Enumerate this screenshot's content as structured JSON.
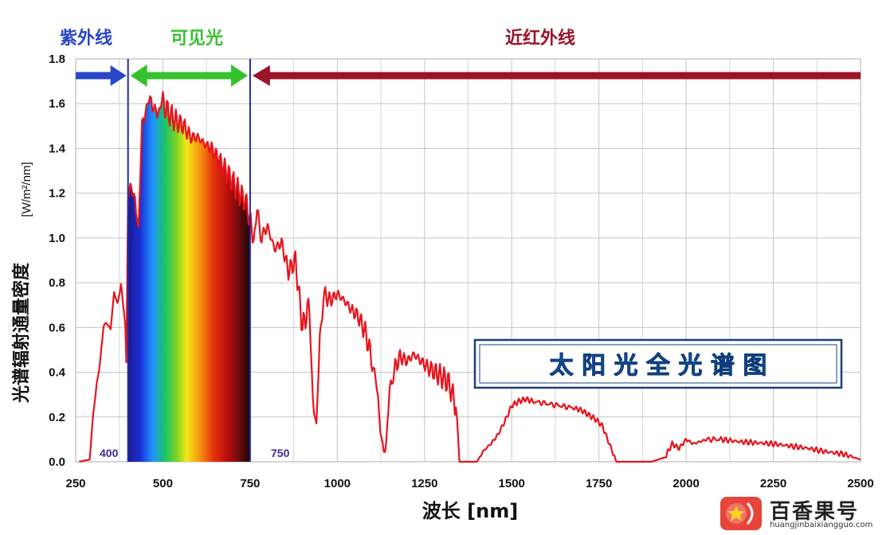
{
  "chart_data": {
    "type": "area",
    "title": "太 阳 光 全 光 谱 图",
    "xlabel": "波长 [nm]",
    "ylabel": "光谱辐射通量密度",
    "ylabel_unit": "[W/m²/nm]",
    "xlim": [
      250,
      2500
    ],
    "ylim": [
      0,
      1.8
    ],
    "xticks": [
      250,
      500,
      750,
      1000,
      1250,
      1500,
      1750,
      2000,
      2250,
      2500
    ],
    "yticks": [
      "0.0",
      "0.2",
      "0.4",
      "0.6",
      "0.8",
      "1.0",
      "1.2",
      "1.4",
      "1.6",
      "1.8"
    ],
    "grid": true,
    "bands": [
      {
        "label": "紫外线",
        "color": "#2846c8"
      },
      {
        "label": "可见光",
        "color": "#35c22e"
      },
      {
        "label": "近红外线",
        "color": "#9c1428"
      }
    ],
    "boundaries": [
      {
        "x": 400,
        "label": "400"
      },
      {
        "x": 750,
        "label": "750"
      }
    ],
    "series": [
      {
        "color": "#e8141c",
        "x": [
          260,
          290,
          300,
          310,
          320,
          330,
          340,
          350,
          360,
          370,
          380,
          390,
          395,
          400,
          410,
          420,
          430,
          440,
          450,
          460,
          470,
          480,
          490,
          500,
          520,
          540,
          560,
          580,
          600,
          620,
          640,
          660,
          680,
          700,
          720,
          740,
          760,
          770,
          780,
          800,
          820,
          840,
          860,
          880,
          900,
          920,
          930,
          940,
          950,
          960,
          980,
          1000,
          1020,
          1040,
          1060,
          1080,
          1100,
          1110,
          1120,
          1130,
          1140,
          1150,
          1160,
          1180,
          1200,
          1220,
          1240,
          1260,
          1280,
          1300,
          1320,
          1340,
          1350,
          1360,
          1380,
          1400,
          1420,
          1440,
          1460,
          1480,
          1500,
          1520,
          1540,
          1560,
          1600,
          1640,
          1680,
          1700,
          1720,
          1740,
          1760,
          1780,
          1800,
          1820,
          1850,
          1900,
          1940,
          1960,
          1980,
          2000,
          2020,
          2040,
          2060,
          2100,
          2150,
          2200,
          2250,
          2300,
          2350,
          2400,
          2450,
          2500
        ],
        "values": [
          0,
          0.01,
          0.2,
          0.35,
          0.45,
          0.6,
          0.62,
          0.6,
          0.75,
          0.7,
          0.8,
          0.65,
          0.45,
          1.15,
          1.25,
          1.2,
          1.0,
          1.5,
          1.6,
          1.62,
          1.55,
          1.6,
          1.58,
          1.6,
          1.55,
          1.52,
          1.5,
          1.45,
          1.45,
          1.42,
          1.4,
          1.35,
          1.3,
          1.25,
          1.2,
          1.15,
          1.0,
          1.1,
          1.0,
          1.05,
          0.95,
          0.98,
          0.85,
          0.9,
          0.6,
          0.7,
          0.3,
          0.12,
          0.55,
          0.75,
          0.72,
          0.75,
          0.72,
          0.68,
          0.65,
          0.58,
          0.45,
          0.35,
          0.2,
          0.1,
          0.05,
          0.3,
          0.4,
          0.47,
          0.45,
          0.48,
          0.45,
          0.42,
          0.4,
          0.38,
          0.35,
          0.25,
          0.0,
          0.0,
          0.0,
          0.0,
          0.05,
          0.08,
          0.12,
          0.18,
          0.25,
          0.27,
          0.28,
          0.27,
          0.26,
          0.25,
          0.24,
          0.23,
          0.21,
          0.19,
          0.16,
          0.08,
          0.0,
          0.0,
          0.0,
          0.0,
          0.02,
          0.08,
          0.06,
          0.1,
          0.08,
          0.09,
          0.1,
          0.1,
          0.09,
          0.085,
          0.08,
          0.07,
          0.06,
          0.045,
          0.035,
          0.01
        ]
      }
    ]
  },
  "watermark": {
    "brand": "百香果号",
    "url": "huangjinbaixiangguo.com"
  }
}
